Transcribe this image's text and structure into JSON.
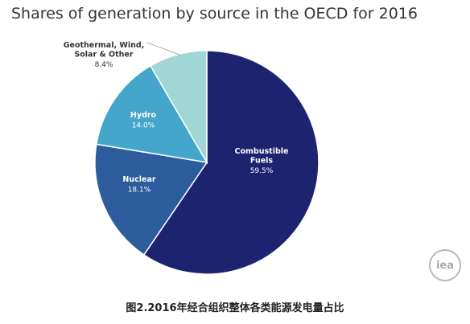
{
  "chart_data": {
    "type": "pie",
    "title": "Shares of generation by source in the OECD for 2016",
    "slices": [
      {
        "name": [
          "Combustible",
          "Fuels"
        ],
        "value": 59.5,
        "display": "59.5%",
        "color": "#1e2370",
        "label_color": "#ffffff"
      },
      {
        "name": [
          "Nuclear"
        ],
        "value": 18.1,
        "display": "18.1%",
        "color": "#2c5c9c",
        "label_color": "#ffffff"
      },
      {
        "name": [
          "Hydro"
        ],
        "value": 14.0,
        "display": "14.0%",
        "color": "#45a6cc",
        "label_color": "#ffffff"
      },
      {
        "name": [
          "Geothermal, Wind,",
          "Solar & Other"
        ],
        "value": 8.4,
        "display": "8.4%",
        "color": "#a0d6d3",
        "label_color": "#333333"
      }
    ]
  },
  "logo_text": "iea",
  "caption": "图2.2016年经合组织整体各类能源发电量占比"
}
